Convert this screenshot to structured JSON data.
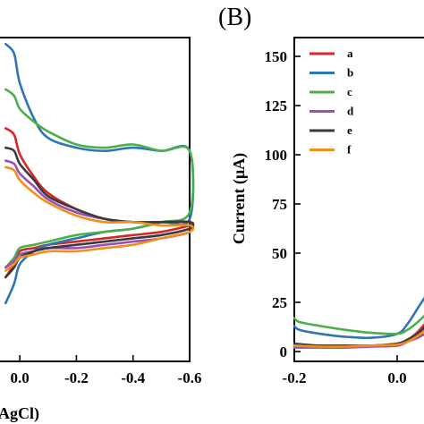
{
  "panel_labels": {
    "right": "(B)"
  },
  "colors": {
    "a": "#d62728",
    "b": "#2e75b6",
    "c": "#4daf4a",
    "d": "#9b4fb0",
    "e": "#3a3a3a",
    "f": "#f28e1c"
  },
  "chart_data": [
    {
      "type": "line",
      "panel": "left",
      "xlabel_fragment": "(AgCl)",
      "x_ticks": [
        "0.0",
        "-0.2",
        "-0.4",
        "-0.6"
      ],
      "x_tick_values": [
        0.0,
        -0.2,
        -0.4,
        -0.6
      ],
      "xlim": [
        0.07,
        -0.6
      ],
      "ylim": [
        0,
        1
      ],
      "grid": false,
      "series": [
        {
          "name": "a",
          "x": [
            0.05,
            0.02,
            0.0,
            -0.05,
            -0.1,
            -0.2,
            -0.3,
            -0.4,
            -0.5,
            -0.6,
            -0.6,
            -0.5,
            -0.4,
            -0.3,
            -0.2,
            -0.1,
            -0.05,
            0.0,
            0.02,
            0.05
          ],
          "y": [
            0.72,
            0.7,
            0.64,
            0.57,
            0.52,
            0.47,
            0.44,
            0.43,
            0.43,
            0.43,
            0.42,
            0.4,
            0.39,
            0.38,
            0.37,
            0.36,
            0.35,
            0.34,
            0.3,
            0.26
          ]
        },
        {
          "name": "b",
          "x": [
            0.05,
            0.02,
            0.0,
            -0.05,
            -0.1,
            -0.2,
            -0.3,
            -0.4,
            -0.5,
            -0.6,
            -0.6,
            -0.5,
            -0.4,
            -0.3,
            -0.2,
            -0.1,
            -0.05,
            0.0,
            0.02,
            0.05
          ],
          "y": [
            0.98,
            0.95,
            0.86,
            0.75,
            0.69,
            0.66,
            0.65,
            0.66,
            0.65,
            0.65,
            0.44,
            0.43,
            0.41,
            0.4,
            0.38,
            0.36,
            0.34,
            0.3,
            0.24,
            0.18
          ]
        },
        {
          "name": "c",
          "x": [
            0.05,
            0.02,
            0.0,
            -0.05,
            -0.1,
            -0.2,
            -0.3,
            -0.4,
            -0.5,
            -0.6,
            -0.6,
            -0.5,
            -0.4,
            -0.3,
            -0.2,
            -0.1,
            -0.05,
            0.0,
            0.02,
            0.05
          ],
          "y": [
            0.84,
            0.82,
            0.78,
            0.74,
            0.71,
            0.67,
            0.66,
            0.67,
            0.65,
            0.65,
            0.46,
            0.43,
            0.41,
            0.4,
            0.39,
            0.37,
            0.36,
            0.35,
            0.32,
            0.29
          ]
        },
        {
          "name": "d",
          "x": [
            0.05,
            0.02,
            0.0,
            -0.05,
            -0.1,
            -0.2,
            -0.3,
            -0.4,
            -0.5,
            -0.6,
            -0.6,
            -0.5,
            -0.4,
            -0.3,
            -0.2,
            -0.1,
            -0.05,
            0.0,
            0.02,
            0.05
          ],
          "y": [
            0.62,
            0.61,
            0.58,
            0.54,
            0.5,
            0.46,
            0.44,
            0.43,
            0.43,
            0.43,
            0.4,
            0.38,
            0.37,
            0.36,
            0.35,
            0.35,
            0.34,
            0.33,
            0.31,
            0.29
          ]
        },
        {
          "name": "e",
          "x": [
            0.05,
            0.02,
            0.0,
            -0.05,
            -0.1,
            -0.2,
            -0.3,
            -0.4,
            -0.5,
            -0.6,
            -0.6,
            -0.5,
            -0.4,
            -0.3,
            -0.2,
            -0.1,
            -0.05,
            0.0,
            0.02,
            0.05
          ],
          "y": [
            0.66,
            0.65,
            0.61,
            0.56,
            0.51,
            0.47,
            0.44,
            0.43,
            0.43,
            0.43,
            0.41,
            0.39,
            0.38,
            0.37,
            0.36,
            0.35,
            0.34,
            0.32,
            0.29,
            0.26
          ]
        },
        {
          "name": "f",
          "x": [
            0.05,
            0.02,
            0.0,
            -0.05,
            -0.1,
            -0.2,
            -0.3,
            -0.4,
            -0.5,
            -0.6,
            -0.6,
            -0.5,
            -0.4,
            -0.3,
            -0.2,
            -0.1,
            -0.05,
            0.0,
            0.02,
            0.05
          ],
          "y": [
            0.6,
            0.59,
            0.56,
            0.52,
            0.49,
            0.45,
            0.43,
            0.43,
            0.42,
            0.42,
            0.4,
            0.38,
            0.36,
            0.35,
            0.34,
            0.34,
            0.33,
            0.32,
            0.3,
            0.28
          ]
        }
      ]
    },
    {
      "type": "line",
      "panel": "right",
      "ylabel": "Current (μA)",
      "x_ticks": [
        "-0.2",
        "0.0"
      ],
      "x_tick_values": [
        -0.2,
        0.0
      ],
      "xlim": [
        -0.2,
        0.06
      ],
      "y_ticks": [
        "0",
        "25",
        "50",
        "75",
        "100",
        "125",
        "150"
      ],
      "y_tick_values": [
        0,
        25,
        50,
        75,
        100,
        125,
        150
      ],
      "ylim": [
        -5,
        160
      ],
      "grid": false,
      "legend": {
        "placement": "top-left",
        "entries": [
          "a",
          "b",
          "c",
          "d",
          "e",
          "f"
        ]
      },
      "series": [
        {
          "name": "a",
          "x": [
            -0.2,
            -0.15,
            -0.1,
            -0.05,
            0.0,
            0.02,
            0.04,
            0.06
          ],
          "y": [
            3,
            3,
            3,
            3,
            4,
            6,
            10,
            16
          ]
        },
        {
          "name": "b",
          "x": [
            -0.2,
            -0.19,
            -0.15,
            -0.1,
            -0.05,
            0.0,
            0.02,
            0.04,
            0.06
          ],
          "y": [
            13,
            11,
            9,
            7.5,
            7,
            9,
            14,
            22,
            30
          ]
        },
        {
          "name": "c",
          "x": [
            -0.2,
            -0.19,
            -0.15,
            -0.1,
            -0.05,
            0.0,
            0.02,
            0.04,
            0.06
          ],
          "y": [
            17,
            15,
            13,
            11,
            9.5,
            9,
            11,
            15,
            20
          ]
        },
        {
          "name": "d",
          "x": [
            -0.2,
            -0.15,
            -0.1,
            -0.05,
            0.0,
            0.02,
            0.04,
            0.06
          ],
          "y": [
            2,
            2,
            2,
            2.5,
            3,
            5,
            7,
            10
          ]
        },
        {
          "name": "e",
          "x": [
            -0.2,
            -0.15,
            -0.1,
            -0.05,
            0.0,
            0.02,
            0.04,
            0.06
          ],
          "y": [
            4,
            3,
            3,
            3,
            4,
            6,
            9,
            14
          ]
        },
        {
          "name": "f",
          "x": [
            -0.2,
            -0.15,
            -0.1,
            -0.05,
            0.0,
            0.02,
            0.04,
            0.06
          ],
          "y": [
            3,
            2.5,
            2.5,
            3,
            3.5,
            5,
            8,
            12
          ]
        }
      ]
    }
  ]
}
